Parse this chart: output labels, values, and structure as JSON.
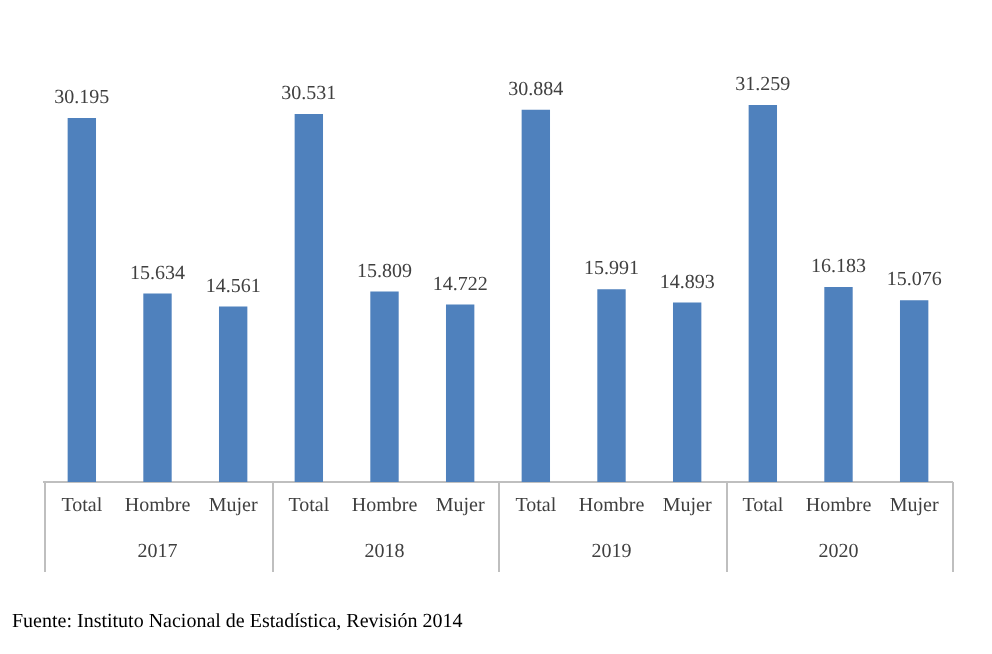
{
  "chart_data": {
    "type": "bar",
    "categories": [
      "Total",
      "Hombre",
      "Mujer",
      "Total",
      "Hombre",
      "Mujer",
      "Total",
      "Hombre",
      "Mujer",
      "Total",
      "Hombre",
      "Mujer"
    ],
    "values": [
      30.195,
      15.634,
      14.561,
      30.531,
      15.809,
      14.722,
      30.884,
      15.991,
      14.893,
      31.259,
      16.183,
      15.076
    ],
    "color": "#4f81bd",
    "data_labels": true,
    "grid": false,
    "legend": false,
    "annotations": [
      "2017",
      "2018",
      "2019",
      "2020",
      "Fuente: Instituto Nacional de Estadística, Revisión 2014"
    ]
  }
}
